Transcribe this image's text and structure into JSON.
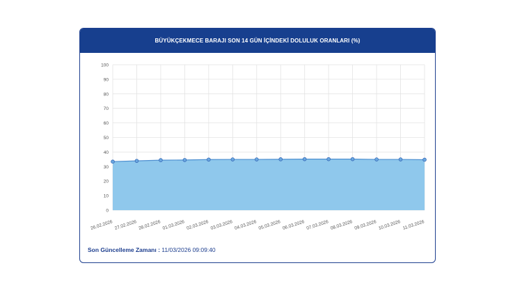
{
  "card": {
    "title": "BÜYÜKÇEKMECE BARAJI SON 14 GÜN İÇİNDEKİ DOLULUK ORANLARI (%)"
  },
  "footer": {
    "label": "Son Güncelleme Zamanı :",
    "value": "11/03/2026 09:09:40"
  },
  "colors": {
    "header_bg": "#173f8e",
    "area_fill": "#8fc8ec",
    "line": "#4d8fd0",
    "marker_fill": "#6aa8e0",
    "marker_stroke": "#3566b5",
    "grid": "#e3e3e3"
  },
  "chart_data": {
    "type": "area",
    "categories": [
      "26.02.2026",
      "27.02.2026",
      "28.02.2026",
      "01.03.2026",
      "02.03.2026",
      "03.03.2026",
      "04.03.2026",
      "05.03.2026",
      "06.03.2026",
      "07.03.2026",
      "08.03.2026",
      "09.03.2026",
      "10.03.2026",
      "11.03.2026"
    ],
    "values": [
      33.4,
      33.9,
      34.4,
      34.5,
      34.8,
      34.9,
      34.9,
      35.0,
      35.1,
      35.1,
      35.1,
      34.9,
      34.9,
      34.7
    ],
    "yticks": [
      0,
      10,
      20,
      30,
      40,
      50,
      60,
      70,
      80,
      90,
      100
    ],
    "ylim": [
      0,
      100
    ],
    "grid": true
  }
}
